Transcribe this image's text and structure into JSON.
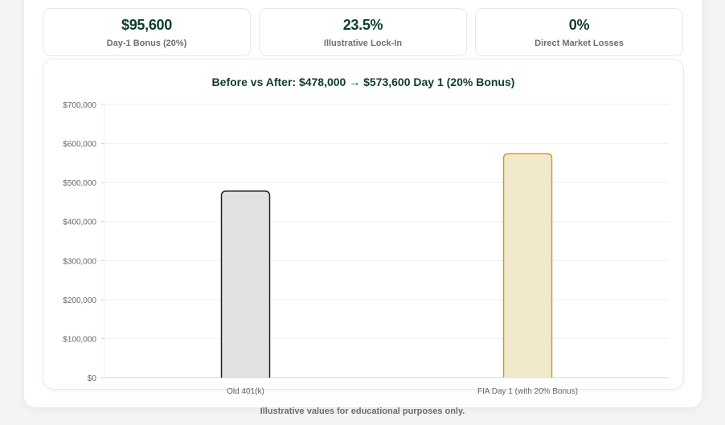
{
  "stats": [
    {
      "value": "$95,600",
      "label": "Day-1 Bonus (20%)"
    },
    {
      "value": "23.5%",
      "label": "Illustrative Lock-In"
    },
    {
      "value": "0%",
      "label": "Direct Market Losses"
    }
  ],
  "chart_data": {
    "type": "bar",
    "title": "Before vs After: $478,000 → $573,600 Day 1 (20% Bonus)",
    "categories": [
      "Old 401(k)",
      "FIA Day 1 (with 20% Bonus)"
    ],
    "values": [
      478000,
      573600
    ],
    "colors": {
      "fill": [
        "#dfe1e3",
        "#f1e9cc"
      ],
      "stroke": [
        "#222222",
        "#c9a227"
      ]
    },
    "ylim": [
      0,
      700000
    ],
    "yticks": [
      "$0",
      "$100,000",
      "$200,000",
      "$300,000",
      "$400,000",
      "$500,000",
      "$600,000",
      "$700,000"
    ],
    "grid": true,
    "xlabel": "",
    "ylabel": ""
  },
  "footer": "Illustrative values for educational purposes only."
}
